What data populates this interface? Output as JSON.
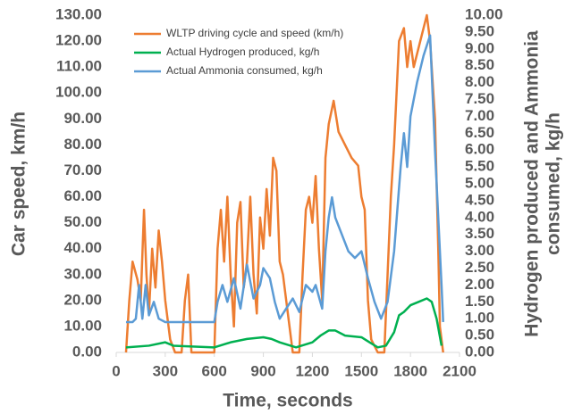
{
  "chart_data": {
    "type": "line",
    "x_label": "Time, seconds",
    "y_label": "Car speed, km/h",
    "y2_label": [
      "Hydrogen produced and Ammonia",
      "consumed, kg/h"
    ],
    "xlim": [
      0,
      2100
    ],
    "xticks": [
      0,
      300,
      600,
      900,
      1200,
      1500,
      1800,
      2100
    ],
    "ylim": [
      0,
      130
    ],
    "yticks": [
      {
        "value": 0,
        "label": "0.00"
      },
      {
        "value": 10,
        "label": "10.00"
      },
      {
        "value": 20,
        "label": "20.00"
      },
      {
        "value": 30,
        "label": "30.00"
      },
      {
        "value": 40,
        "label": "40.00"
      },
      {
        "value": 50,
        "label": "50.00"
      },
      {
        "value": 60,
        "label": "60.00"
      },
      {
        "value": 70,
        "label": "70.00"
      },
      {
        "value": 80,
        "label": "80.00"
      },
      {
        "value": 90,
        "label": "90.00"
      },
      {
        "value": 100,
        "label": "100.00"
      },
      {
        "value": 110,
        "label": "110.00"
      },
      {
        "value": 120,
        "label": "120.00"
      },
      {
        "value": 130,
        "label": "130.00"
      }
    ],
    "y2lim": [
      0,
      10
    ],
    "y2ticks": [
      {
        "value": 0,
        "label": "0.00"
      },
      {
        "value": 0.5,
        "label": "0.50"
      },
      {
        "value": 1,
        "label": "1.00"
      },
      {
        "value": 1.5,
        "label": "1.50"
      },
      {
        "value": 2,
        "label": "2.00"
      },
      {
        "value": 2.5,
        "label": "2.50"
      },
      {
        "value": 3,
        "label": "3.00"
      },
      {
        "value": 3.5,
        "label": "3.50"
      },
      {
        "value": 4,
        "label": "4.00"
      },
      {
        "value": 4.5,
        "label": "4.50"
      },
      {
        "value": 5,
        "label": "5.00"
      },
      {
        "value": 5.5,
        "label": "5.50"
      },
      {
        "value": 6,
        "label": "6.00"
      },
      {
        "value": 6.5,
        "label": "6.50"
      },
      {
        "value": 7,
        "label": "7.00"
      },
      {
        "value": 7.5,
        "label": "7.50"
      },
      {
        "value": 8,
        "label": "8.00"
      },
      {
        "value": 8.5,
        "label": "8.50"
      },
      {
        "value": 9,
        "label": "9.00"
      },
      {
        "value": 9.5,
        "label": "9.50"
      },
      {
        "value": 10,
        "label": "10.00"
      }
    ],
    "legend": "upper-left",
    "series": [
      {
        "name": "WLTP driving cycle and speed (km/h)",
        "color": "#ed7d31",
        "x": [
          60,
          80,
          100,
          130,
          150,
          170,
          185,
          200,
          220,
          240,
          260,
          280,
          300,
          330,
          360,
          400,
          420,
          440,
          460,
          600,
          620,
          640,
          660,
          680,
          700,
          720,
          740,
          760,
          780,
          800,
          820,
          840,
          860,
          880,
          900,
          920,
          940,
          960,
          980,
          1000,
          1020,
          1040,
          1060,
          1080,
          1120,
          1140,
          1160,
          1180,
          1200,
          1220,
          1240,
          1260,
          1280,
          1300,
          1330,
          1360,
          1400,
          1440,
          1480,
          1500,
          1520,
          1540,
          1560,
          1600,
          1640,
          1660,
          1680,
          1700,
          1730,
          1760,
          1780,
          1800,
          1820,
          1860,
          1900,
          1920,
          1950,
          1970,
          1980,
          2000
        ],
        "values": [
          0,
          20,
          35,
          28,
          20,
          55,
          30,
          15,
          40,
          25,
          47,
          35,
          20,
          5,
          0,
          0,
          20,
          30,
          0,
          0,
          40,
          55,
          35,
          60,
          30,
          10,
          50,
          58,
          25,
          35,
          60,
          30,
          15,
          52,
          40,
          63,
          45,
          75,
          70,
          35,
          30,
          20,
          10,
          0,
          0,
          30,
          55,
          60,
          50,
          68,
          40,
          20,
          75,
          88,
          97,
          85,
          80,
          75,
          72,
          60,
          55,
          20,
          5,
          0,
          0,
          30,
          60,
          80,
          120,
          125,
          110,
          120,
          110,
          120,
          130,
          120,
          90,
          40,
          10,
          0
        ]
      },
      {
        "name": "Actual Hydrogen produced, kg/h",
        "color": "#00b050",
        "axis": "y2",
        "x": [
          60,
          200,
          300,
          350,
          600,
          700,
          800,
          900,
          950,
          1000,
          1100,
          1200,
          1250,
          1300,
          1340,
          1400,
          1500,
          1550,
          1600,
          1650,
          1700,
          1730,
          1760,
          1800,
          1850,
          1900,
          1930,
          1960,
          1990
        ],
        "values": [
          0.15,
          0.2,
          0.3,
          0.2,
          0.15,
          0.3,
          0.4,
          0.45,
          0.4,
          0.3,
          0.15,
          0.3,
          0.5,
          0.65,
          0.65,
          0.5,
          0.45,
          0.3,
          0.15,
          0.2,
          0.6,
          1.1,
          1.2,
          1.4,
          1.5,
          1.6,
          1.5,
          1.0,
          0.2
        ]
      },
      {
        "name": "Actual Ammonia consumed, kg/h",
        "color": "#5b9bd5",
        "axis": "y2",
        "x": [
          60,
          100,
          120,
          140,
          160,
          180,
          200,
          230,
          260,
          300,
          600,
          620,
          650,
          680,
          720,
          760,
          800,
          840,
          880,
          900,
          940,
          970,
          1000,
          1040,
          1080,
          1120,
          1160,
          1200,
          1220,
          1260,
          1280,
          1300,
          1320,
          1340,
          1380,
          1420,
          1460,
          1500,
          1540,
          1580,
          1620,
          1660,
          1700,
          1740,
          1760,
          1780,
          1800,
          1840,
          1880,
          1920,
          1950,
          1990,
          2000
        ],
        "values": [
          0.9,
          0.9,
          1.0,
          2.0,
          1.0,
          2.0,
          1.1,
          1.5,
          1.0,
          0.9,
          0.9,
          1.5,
          2.0,
          1.5,
          2.2,
          1.3,
          2.6,
          1.6,
          2.0,
          2.5,
          2.2,
          1.5,
          1.0,
          1.3,
          1.6,
          1.2,
          2.0,
          1.8,
          2.0,
          1.3,
          3.0,
          4.0,
          4.6,
          4.0,
          3.5,
          3.0,
          2.8,
          3.0,
          2.2,
          1.5,
          1.0,
          1.5,
          3.0,
          5.5,
          6.5,
          5.5,
          7.0,
          8.0,
          8.8,
          9.4,
          6.0,
          2.0,
          0.9
        ]
      }
    ]
  }
}
